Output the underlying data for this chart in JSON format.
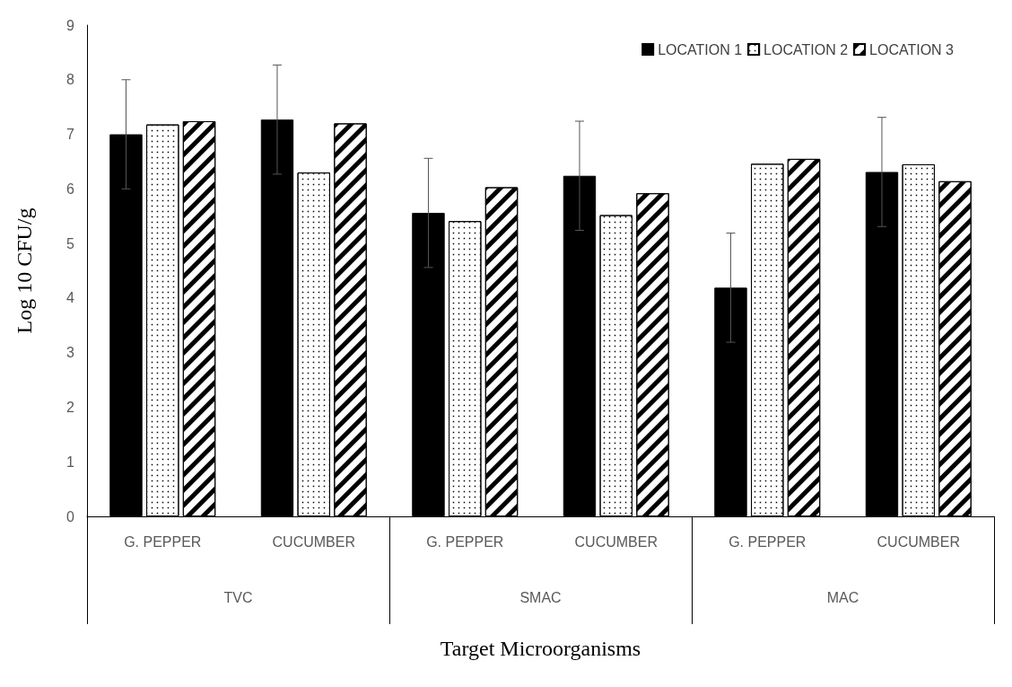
{
  "chart_data": {
    "type": "bar",
    "xlabel": "Target Microorganisms",
    "ylabel": "Log 10 CFU/g",
    "categories": [
      "G. PEPPER",
      "CUCUMBER",
      "G. PEPPER",
      "CUCUMBER",
      "G. PEPPER",
      "CUCUMBER"
    ],
    "series": [
      {
        "name": "LOCATION 1",
        "color": "#000000",
        "values": [
          7.0,
          7.27,
          5.56,
          6.24,
          4.19,
          6.31
        ],
        "errors": [
          1,
          1,
          1,
          1,
          1,
          1
        ]
      },
      {
        "name": "LOCATION 2",
        "color": "#ffffff",
        "values": [
          7.18,
          6.3,
          5.41,
          5.52,
          6.46,
          6.45
        ]
      },
      {
        "name": "LOCATION 3",
        "color": "#ffffff",
        "values": [
          7.24,
          7.2,
          6.03,
          5.92,
          6.55,
          6.14
        ]
      }
    ],
    "annotations": [
      "TVC",
      "SMAC",
      "MAC"
    ],
    "ylim": [
      0,
      9
    ],
    "yticks": [
      0,
      1,
      2,
      3,
      4,
      5,
      6,
      7,
      8,
      9
    ],
    "grid": false,
    "legend": "top right"
  }
}
